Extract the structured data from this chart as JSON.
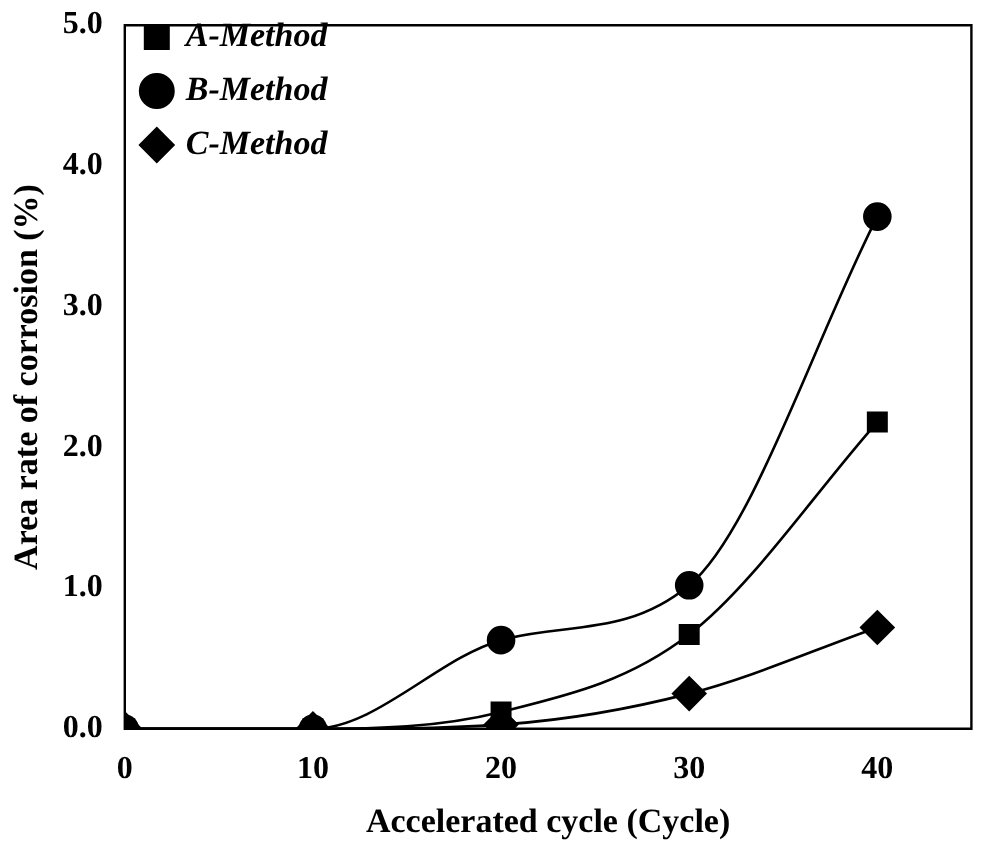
{
  "chart_data": {
    "type": "line",
    "xlabel": "Accelerated cycle (Cycle)",
    "ylabel": "Area rate of corrosion (%)",
    "x": [
      0,
      10,
      20,
      30,
      40
    ],
    "xlim": [
      0,
      45
    ],
    "xticks": [
      0,
      10,
      20,
      30,
      40
    ],
    "ylim": [
      0,
      5
    ],
    "yticks": [
      {
        "value": 0,
        "label": "0.0"
      },
      {
        "value": 1,
        "label": "1.0"
      },
      {
        "value": 2,
        "label": "2.0"
      },
      {
        "value": 3,
        "label": "3.0"
      },
      {
        "value": 4,
        "label": "4.0"
      },
      {
        "value": 5,
        "label": "5.0"
      }
    ],
    "legend": "top left",
    "grid": false,
    "series": [
      {
        "name": "A-Method",
        "color": "#000000",
        "marker": "square",
        "values": [
          0,
          0,
          0.12,
          0.67,
          2.18
        ]
      },
      {
        "name": "B-Method",
        "color": "#000000",
        "marker": "circle",
        "values": [
          0,
          0,
          0.63,
          1.02,
          3.64
        ]
      },
      {
        "name": "C-Method",
        "color": "#000000",
        "marker": "diamond",
        "values": [
          0,
          0,
          0.03,
          0.25,
          0.72
        ]
      }
    ]
  }
}
